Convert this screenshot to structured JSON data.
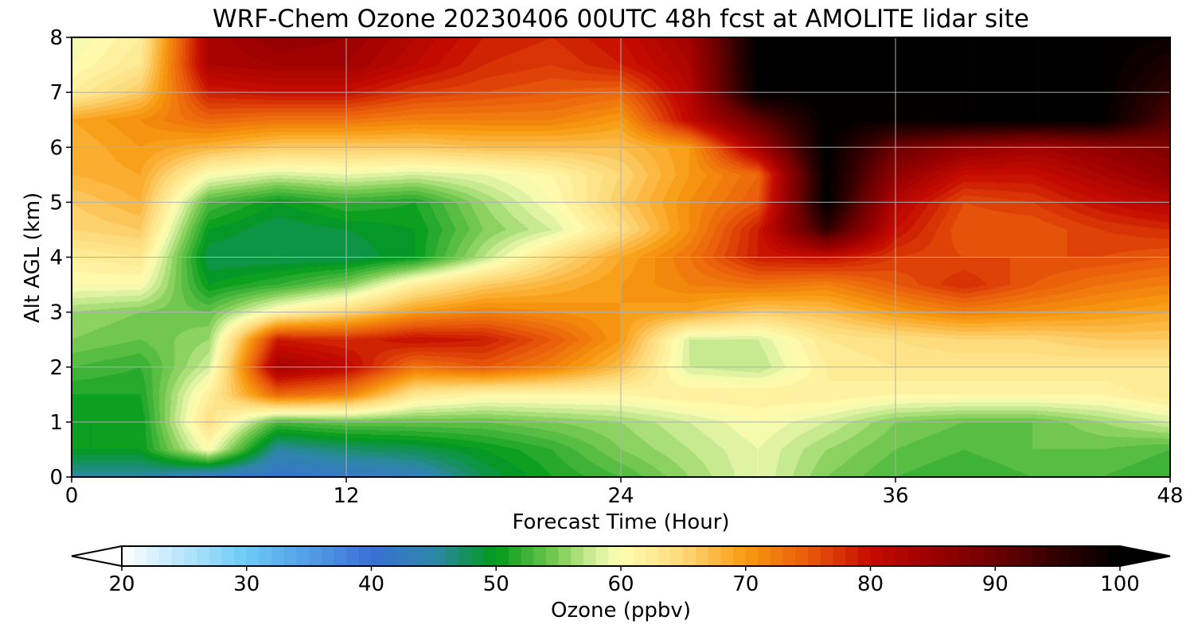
{
  "chart_data": {
    "type": "heatmap",
    "title": "WRF-Chem Ozone  20230406 00UTC 48h fcst at AMOLITE lidar site",
    "xlabel": "Forecast Time (Hour)",
    "ylabel": "Alt AGL (km)",
    "xlim": [
      0,
      48
    ],
    "ylim": [
      0,
      8
    ],
    "xticks": [
      "0",
      "12",
      "24",
      "36",
      "48"
    ],
    "yticks": [
      "0",
      "1",
      "2",
      "3",
      "4",
      "5",
      "6",
      "7",
      "8"
    ],
    "grid": true,
    "x": [
      0,
      3,
      6,
      9,
      12,
      15,
      18,
      21,
      24,
      27,
      30,
      33,
      36,
      39,
      42,
      45,
      48
    ],
    "y": [
      0,
      0.5,
      1,
      1.5,
      2,
      2.5,
      3,
      3.5,
      4,
      4.5,
      5,
      5.5,
      6,
      6.5,
      7,
      7.5,
      8
    ],
    "z": [
      [
        45,
        45,
        42,
        41,
        42,
        43,
        48,
        51,
        53,
        56,
        59,
        55,
        53,
        52,
        53,
        53,
        52
      ],
      [
        50,
        50,
        60,
        45,
        47,
        48,
        50,
        52,
        55,
        57,
        59,
        56,
        54,
        53,
        54,
        54,
        53
      ],
      [
        50,
        50,
        64,
        53,
        54,
        54,
        54,
        55,
        56,
        58,
        60,
        58,
        55,
        54,
        54,
        56,
        58
      ],
      [
        51,
        51,
        62,
        74,
        72,
        63,
        61,
        61,
        61,
        62,
        62,
        62,
        61,
        61,
        61,
        61,
        63
      ],
      [
        53,
        52,
        58,
        84,
        81,
        73,
        75,
        72,
        67,
        58,
        57,
        62,
        63,
        63,
        63,
        63,
        63
      ],
      [
        55,
        54,
        56,
        79,
        78,
        80,
        79,
        75,
        70,
        58,
        58,
        63,
        64,
        65,
        65,
        66,
        66
      ],
      [
        56,
        55,
        54,
        61,
        65,
        70,
        72,
        71,
        70,
        69,
        66,
        67,
        70,
        72,
        71,
        70,
        69
      ],
      [
        60,
        60,
        50,
        52,
        55,
        62,
        66,
        68,
        70,
        72,
        73,
        72,
        75,
        78,
        75,
        73,
        72
      ],
      [
        62,
        63,
        48,
        48,
        48,
        50,
        57,
        64,
        69,
        73,
        79,
        80,
        77,
        76,
        76,
        76,
        75
      ],
      [
        65,
        66,
        50,
        48,
        49,
        50,
        55,
        58,
        64,
        71,
        79,
        95,
        80,
        75,
        75,
        77,
        78
      ],
      [
        66,
        68,
        53,
        50,
        52,
        51,
        56,
        60,
        66,
        71,
        75,
        100,
        82,
        76,
        77,
        80,
        82
      ],
      [
        68,
        69,
        60,
        58,
        59,
        58,
        59,
        61,
        65,
        70,
        74,
        100,
        86,
        80,
        80,
        83,
        86
      ],
      [
        68,
        70,
        68,
        66,
        66,
        66,
        67,
        67,
        67,
        70,
        84,
        100,
        90,
        86,
        84,
        86,
        88
      ],
      [
        69,
        71,
        74,
        73,
        73,
        72,
        72,
        72,
        70,
        81,
        91,
        100,
        99,
        100,
        100,
        100,
        92
      ],
      [
        62,
        66,
        79,
        80,
        80,
        77,
        76,
        75,
        74,
        82,
        100,
        100,
        100,
        100,
        100,
        100,
        95
      ],
      [
        60,
        63,
        83,
        84,
        84,
        81,
        78,
        77,
        79,
        83,
        100,
        100,
        100,
        100,
        100,
        100,
        97
      ],
      [
        59,
        62,
        83,
        86,
        85,
        82,
        79,
        78,
        80,
        84,
        100,
        100,
        100,
        100,
        100,
        100,
        99
      ]
    ],
    "colorbar": {
      "label": "Ozone  (ppbv)",
      "min": 20,
      "max": 100,
      "step": 1,
      "extend": "both",
      "ticks": [
        "20",
        "30",
        "40",
        "50",
        "60",
        "70",
        "80",
        "90",
        "100"
      ],
      "stops": [
        {
          "v": 20,
          "c": "#ffffff"
        },
        {
          "v": 30,
          "c": "#6bcaf5"
        },
        {
          "v": 40,
          "c": "#3a6fd6"
        },
        {
          "v": 45,
          "c": "#2e86a8"
        },
        {
          "v": 50,
          "c": "#009a1a"
        },
        {
          "v": 55,
          "c": "#7dcc55"
        },
        {
          "v": 58,
          "c": "#d6ef9c"
        },
        {
          "v": 60,
          "c": "#fffdb2"
        },
        {
          "v": 65,
          "c": "#fdd878"
        },
        {
          "v": 70,
          "c": "#f89a10"
        },
        {
          "v": 75,
          "c": "#e85a0a"
        },
        {
          "v": 80,
          "c": "#c60b00"
        },
        {
          "v": 85,
          "c": "#9a0000"
        },
        {
          "v": 90,
          "c": "#6c0000"
        },
        {
          "v": 95,
          "c": "#300000"
        },
        {
          "v": 100,
          "c": "#000000"
        }
      ]
    }
  }
}
